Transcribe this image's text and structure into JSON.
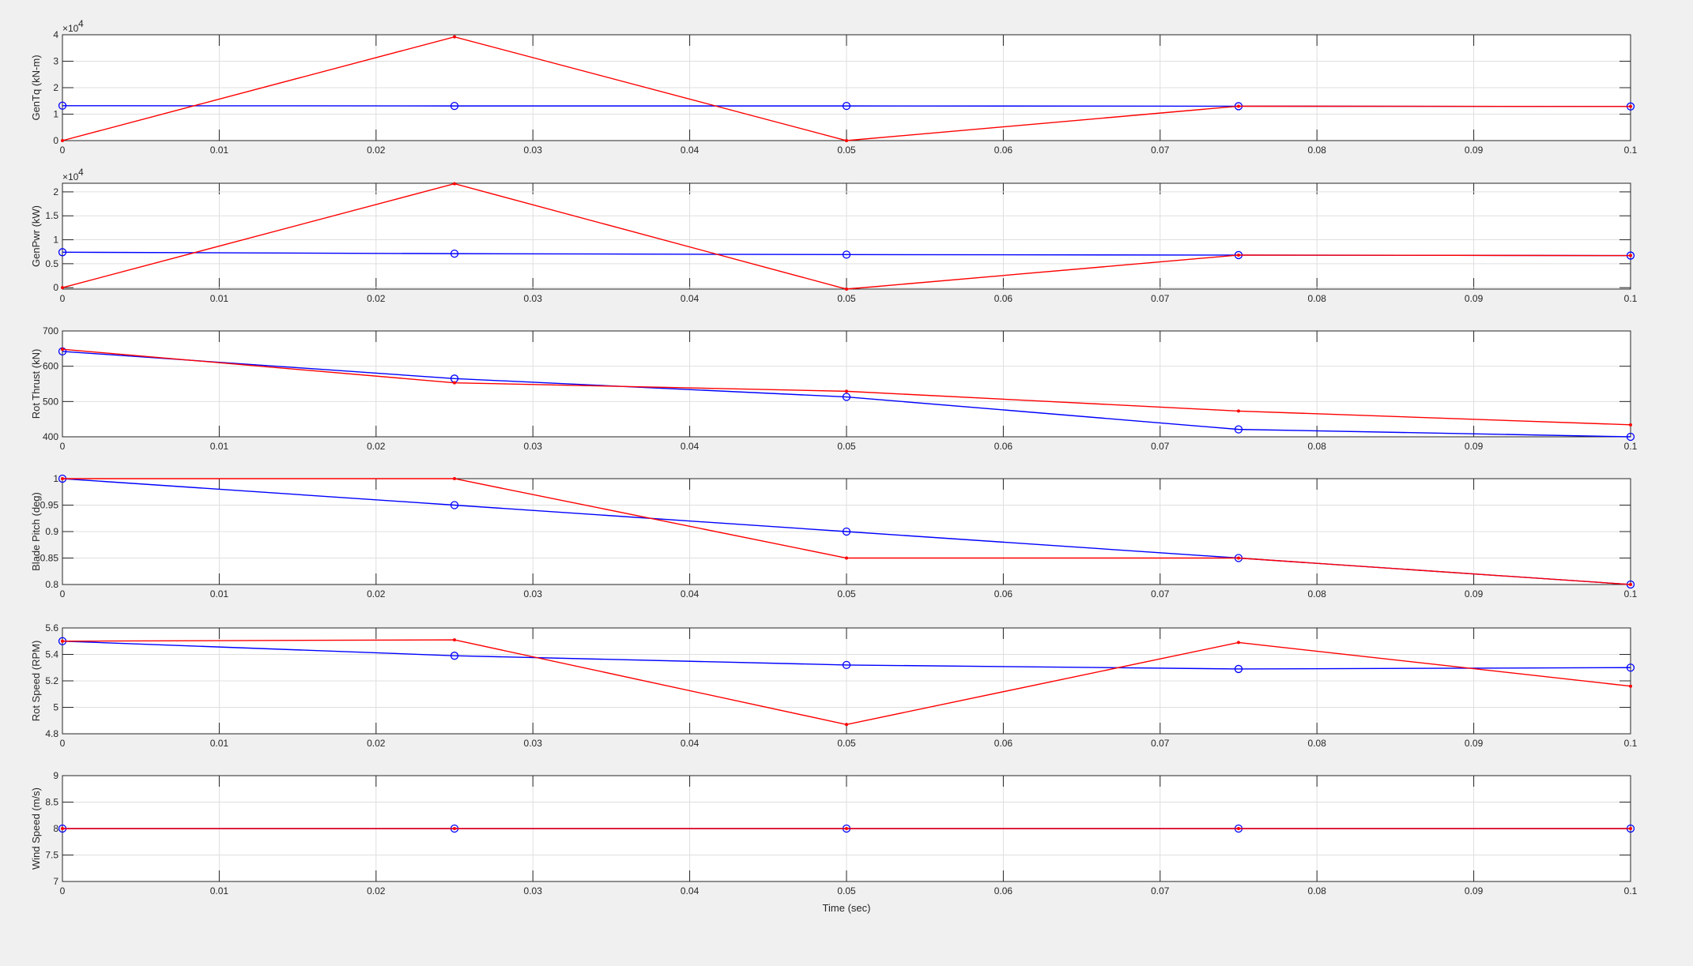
{
  "chart_data": [
    {
      "type": "line",
      "ylabel": "GenTq (kN-m)",
      "y_multiplier": "×10",
      "y_exponent": "4",
      "x": [
        0,
        0.025,
        0.05,
        0.075,
        0.1
      ],
      "xlim": [
        0,
        0.1
      ],
      "xticks": [
        0,
        0.01,
        0.02,
        0.03,
        0.04,
        0.05,
        0.06,
        0.07,
        0.08,
        0.09,
        0.1
      ],
      "ylim": [
        0,
        40000
      ],
      "yticks": [
        {
          "value": 0,
          "label": "0"
        },
        {
          "value": 10000,
          "label": "1"
        },
        {
          "value": 20000,
          "label": "2"
        },
        {
          "value": 30000,
          "label": "3"
        },
        {
          "value": 40000,
          "label": "4"
        }
      ],
      "grid": true,
      "series": [
        {
          "color": "#0000ff",
          "marker": "o",
          "values": [
            13200,
            13100,
            13100,
            13000,
            12900
          ]
        },
        {
          "color": "#ff0000",
          "marker": ".",
          "values": [
            0,
            39200,
            0,
            13000,
            12900
          ]
        }
      ]
    },
    {
      "type": "line",
      "ylabel": "GenPwr (kW)",
      "y_multiplier": "×10",
      "y_exponent": "4",
      "x": [
        0,
        0.025,
        0.05,
        0.075,
        0.1
      ],
      "xlim": [
        0,
        0.1
      ],
      "xticks": [
        0,
        0.01,
        0.02,
        0.03,
        0.04,
        0.05,
        0.06,
        0.07,
        0.08,
        0.09,
        0.1
      ],
      "ylim": [
        -300,
        21800
      ],
      "yticks": [
        {
          "value": 0,
          "label": "0"
        },
        {
          "value": 5000,
          "label": "0.5"
        },
        {
          "value": 10000,
          "label": "1"
        },
        {
          "value": 15000,
          "label": "1.5"
        },
        {
          "value": 20000,
          "label": "2"
        }
      ],
      "grid": true,
      "series": [
        {
          "color": "#0000ff",
          "marker": "o",
          "values": [
            7400,
            7100,
            6900,
            6800,
            6700
          ]
        },
        {
          "color": "#ff0000",
          "marker": ".",
          "values": [
            0,
            21700,
            -300,
            6800,
            6700
          ]
        }
      ]
    },
    {
      "type": "line",
      "ylabel": "Rot Thrust (kN)",
      "x": [
        0,
        0.025,
        0.05,
        0.075,
        0.1
      ],
      "xlim": [
        0,
        0.1
      ],
      "xticks": [
        0,
        0.01,
        0.02,
        0.03,
        0.04,
        0.05,
        0.06,
        0.07,
        0.08,
        0.09,
        0.1
      ],
      "ylim": [
        400,
        700
      ],
      "yticks": [
        400,
        500,
        600,
        700
      ],
      "grid": true,
      "series": [
        {
          "color": "#0000ff",
          "marker": "o",
          "values": [
            642,
            565,
            513,
            421,
            400
          ]
        },
        {
          "color": "#ff0000",
          "marker": ".",
          "values": [
            648,
            553,
            529,
            473,
            434
          ]
        }
      ]
    },
    {
      "type": "line",
      "ylabel": "Blade Pitch (deg)",
      "x": [
        0,
        0.025,
        0.05,
        0.075,
        0.1
      ],
      "xlim": [
        0,
        0.1
      ],
      "xticks": [
        0,
        0.01,
        0.02,
        0.03,
        0.04,
        0.05,
        0.06,
        0.07,
        0.08,
        0.09,
        0.1
      ],
      "ylim": [
        0.8,
        1
      ],
      "yticks": [
        0.8,
        0.85,
        0.9,
        0.95,
        1
      ],
      "grid": true,
      "series": [
        {
          "color": "#0000ff",
          "marker": "o",
          "values": [
            1,
            0.95,
            0.9,
            0.85,
            0.8
          ]
        },
        {
          "color": "#ff0000",
          "marker": ".",
          "values": [
            1,
            1,
            0.85,
            0.85,
            0.8
          ]
        }
      ]
    },
    {
      "type": "line",
      "ylabel": "Rot Speed (RPM)",
      "x": [
        0,
        0.025,
        0.05,
        0.075,
        0.1
      ],
      "xlim": [
        0,
        0.1
      ],
      "xticks": [
        0,
        0.01,
        0.02,
        0.03,
        0.04,
        0.05,
        0.06,
        0.07,
        0.08,
        0.09,
        0.1
      ],
      "ylim": [
        4.8,
        5.6
      ],
      "yticks": [
        4.8,
        5,
        5.2,
        5.4,
        5.6
      ],
      "grid": true,
      "series": [
        {
          "color": "#0000ff",
          "marker": "o",
          "values": [
            5.5,
            5.39,
            5.32,
            5.29,
            5.3
          ]
        },
        {
          "color": "#ff0000",
          "marker": ".",
          "values": [
            5.5,
            5.51,
            4.87,
            5.49,
            5.16
          ]
        }
      ]
    },
    {
      "type": "line",
      "ylabel": "Wind Speed (m/s)",
      "xlabel": "Time (sec)",
      "x": [
        0,
        0.025,
        0.05,
        0.075,
        0.1
      ],
      "xlim": [
        0,
        0.1
      ],
      "xticks": [
        0,
        0.01,
        0.02,
        0.03,
        0.04,
        0.05,
        0.06,
        0.07,
        0.08,
        0.09,
        0.1
      ],
      "ylim": [
        7,
        9
      ],
      "yticks": [
        7,
        7.5,
        8,
        8.5,
        9
      ],
      "grid": true,
      "series": [
        {
          "color": "#0000ff",
          "marker": "o",
          "values": [
            8,
            8,
            8,
            8,
            8
          ]
        },
        {
          "color": "#ff0000",
          "marker": ".",
          "values": [
            8,
            8,
            8,
            8,
            8
          ]
        }
      ]
    }
  ]
}
